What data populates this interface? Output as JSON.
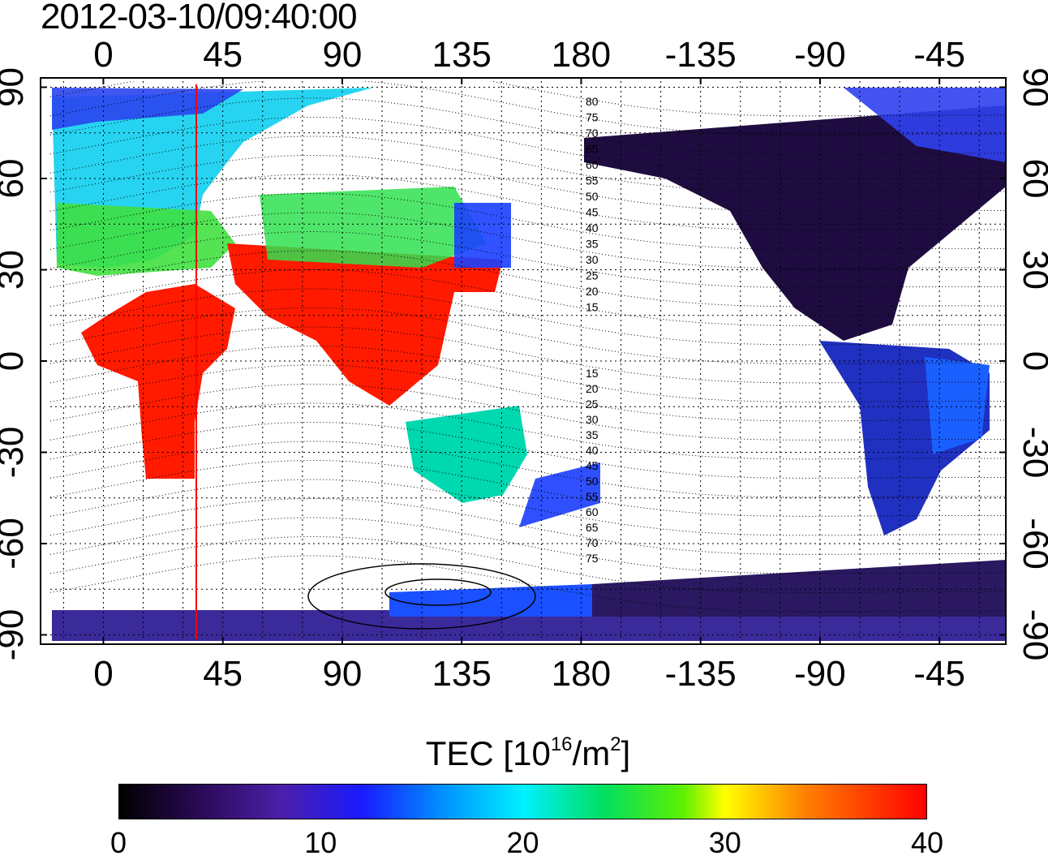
{
  "title": "2012-03-10/09:40:00",
  "map": {
    "x_ticks": [
      "0",
      "45",
      "90",
      "135",
      "180",
      "-135",
      "-90",
      "-45"
    ],
    "y_ticks": [
      "90",
      "60",
      "30",
      "0",
      "-30",
      "-60",
      "-90"
    ],
    "x_range": [
      -20,
      340
    ],
    "y_range": [
      -92,
      92
    ],
    "marker_longitude": 35,
    "marker_color": "#ff0000",
    "contour_labels": [
      "80",
      "75",
      "70",
      "65",
      "60",
      "55",
      "50",
      "45",
      "40",
      "35",
      "30",
      "25",
      "20",
      "15",
      "15",
      "20",
      "25",
      "30",
      "35",
      "40",
      "45",
      "50",
      "55",
      "60",
      "65",
      "70",
      "75"
    ]
  },
  "colorbar": {
    "label_prefix": "TEC  [10",
    "label_exp1": "16",
    "label_mid": "/m",
    "label_exp2": "2",
    "label_suffix": "]",
    "ticks": [
      "0",
      "10",
      "20",
      "30",
      "40"
    ],
    "range": [
      0,
      40
    ]
  }
}
